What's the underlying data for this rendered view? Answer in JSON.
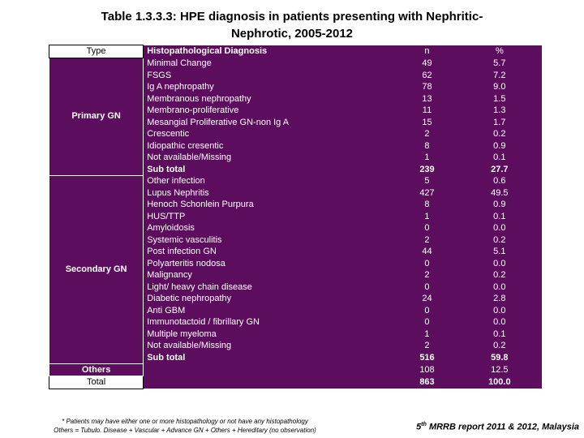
{
  "title_line1": "Table 1.3.3.3: HPE diagnosis in patients presenting with Nephritic-",
  "title_line2": "Nephrotic, 2005-2012",
  "headers": {
    "type": "Type",
    "diagnosis": "Histopathological Diagnosis",
    "n": "n",
    "pct": "%"
  },
  "primary": {
    "label": "Primary GN",
    "rows": [
      {
        "dx": "Minimal Change",
        "n": "49",
        "pct": "5.7"
      },
      {
        "dx": "FSGS",
        "n": "62",
        "pct": "7.2"
      },
      {
        "dx": "Ig A nephropathy",
        "n": "78",
        "pct": "9.0"
      },
      {
        "dx": "Membranous nephropathy",
        "n": "13",
        "pct": "1.5"
      },
      {
        "dx": "Membrano-proliferative",
        "n": "11",
        "pct": "1.3"
      },
      {
        "dx": "Mesangial Proliferative GN-non Ig A",
        "n": "15",
        "pct": "1.7"
      },
      {
        "dx": "Crescentic",
        "n": "2",
        "pct": "0.2"
      },
      {
        "dx": "Idiopathic cresentic",
        "n": "8",
        "pct": "0.9"
      },
      {
        "dx": "Not available/Missing",
        "n": "1",
        "pct": "0.1"
      },
      {
        "dx": "Sub total",
        "n": "239",
        "pct": "27.7"
      }
    ]
  },
  "secondary": {
    "label": "Secondary GN",
    "rows": [
      {
        "dx": "Other infection",
        "n": "5",
        "pct": "0.6"
      },
      {
        "dx": "Lupus Nephritis",
        "n": "427",
        "pct": "49.5"
      },
      {
        "dx": "Henoch Schonlein Purpura",
        "n": "8",
        "pct": "0.9"
      },
      {
        "dx": "HUS/TTP",
        "n": "1",
        "pct": "0.1"
      },
      {
        "dx": "Amyloidosis",
        "n": "0",
        "pct": "0.0"
      },
      {
        "dx": "Systemic vasculitis",
        "n": "2",
        "pct": "0.2"
      },
      {
        "dx": "Post infection GN",
        "n": "44",
        "pct": "5.1"
      },
      {
        "dx": "Polyarteritis nodosa",
        "n": "0",
        "pct": "0.0"
      },
      {
        "dx": "Malignancy",
        "n": "2",
        "pct": "0.2"
      },
      {
        "dx": "Light/ heavy chain disease",
        "n": "0",
        "pct": "0.0"
      },
      {
        "dx": "Diabetic nephropathy",
        "n": "24",
        "pct": "2.8"
      },
      {
        "dx": "Anti GBM",
        "n": "0",
        "pct": "0.0"
      },
      {
        "dx": "Immunotactoid / fibrillary GN",
        "n": "0",
        "pct": "0.0"
      },
      {
        "dx": "Multiple myeloma",
        "n": "1",
        "pct": "0.1"
      },
      {
        "dx": "Not available/Missing",
        "n": "2",
        "pct": "0.2"
      },
      {
        "dx": "Sub total",
        "n": "516",
        "pct": "59.8"
      }
    ]
  },
  "others": {
    "label": "Others",
    "n": "108",
    "pct": "12.5"
  },
  "total": {
    "label": "Total",
    "n": "863",
    "pct": "100.0"
  },
  "footnote_line1": "* Patients may have either one or more histopathology or not have any histopathology",
  "footnote_line2": "Others = Tubulo. Disease + Vascular + Advance GN + Others + Hereditary (no observation)",
  "footer_sup": "th",
  "footer_pre": "5",
  "footer_post": " MRRB report 2011 & 2012, Malaysia"
}
